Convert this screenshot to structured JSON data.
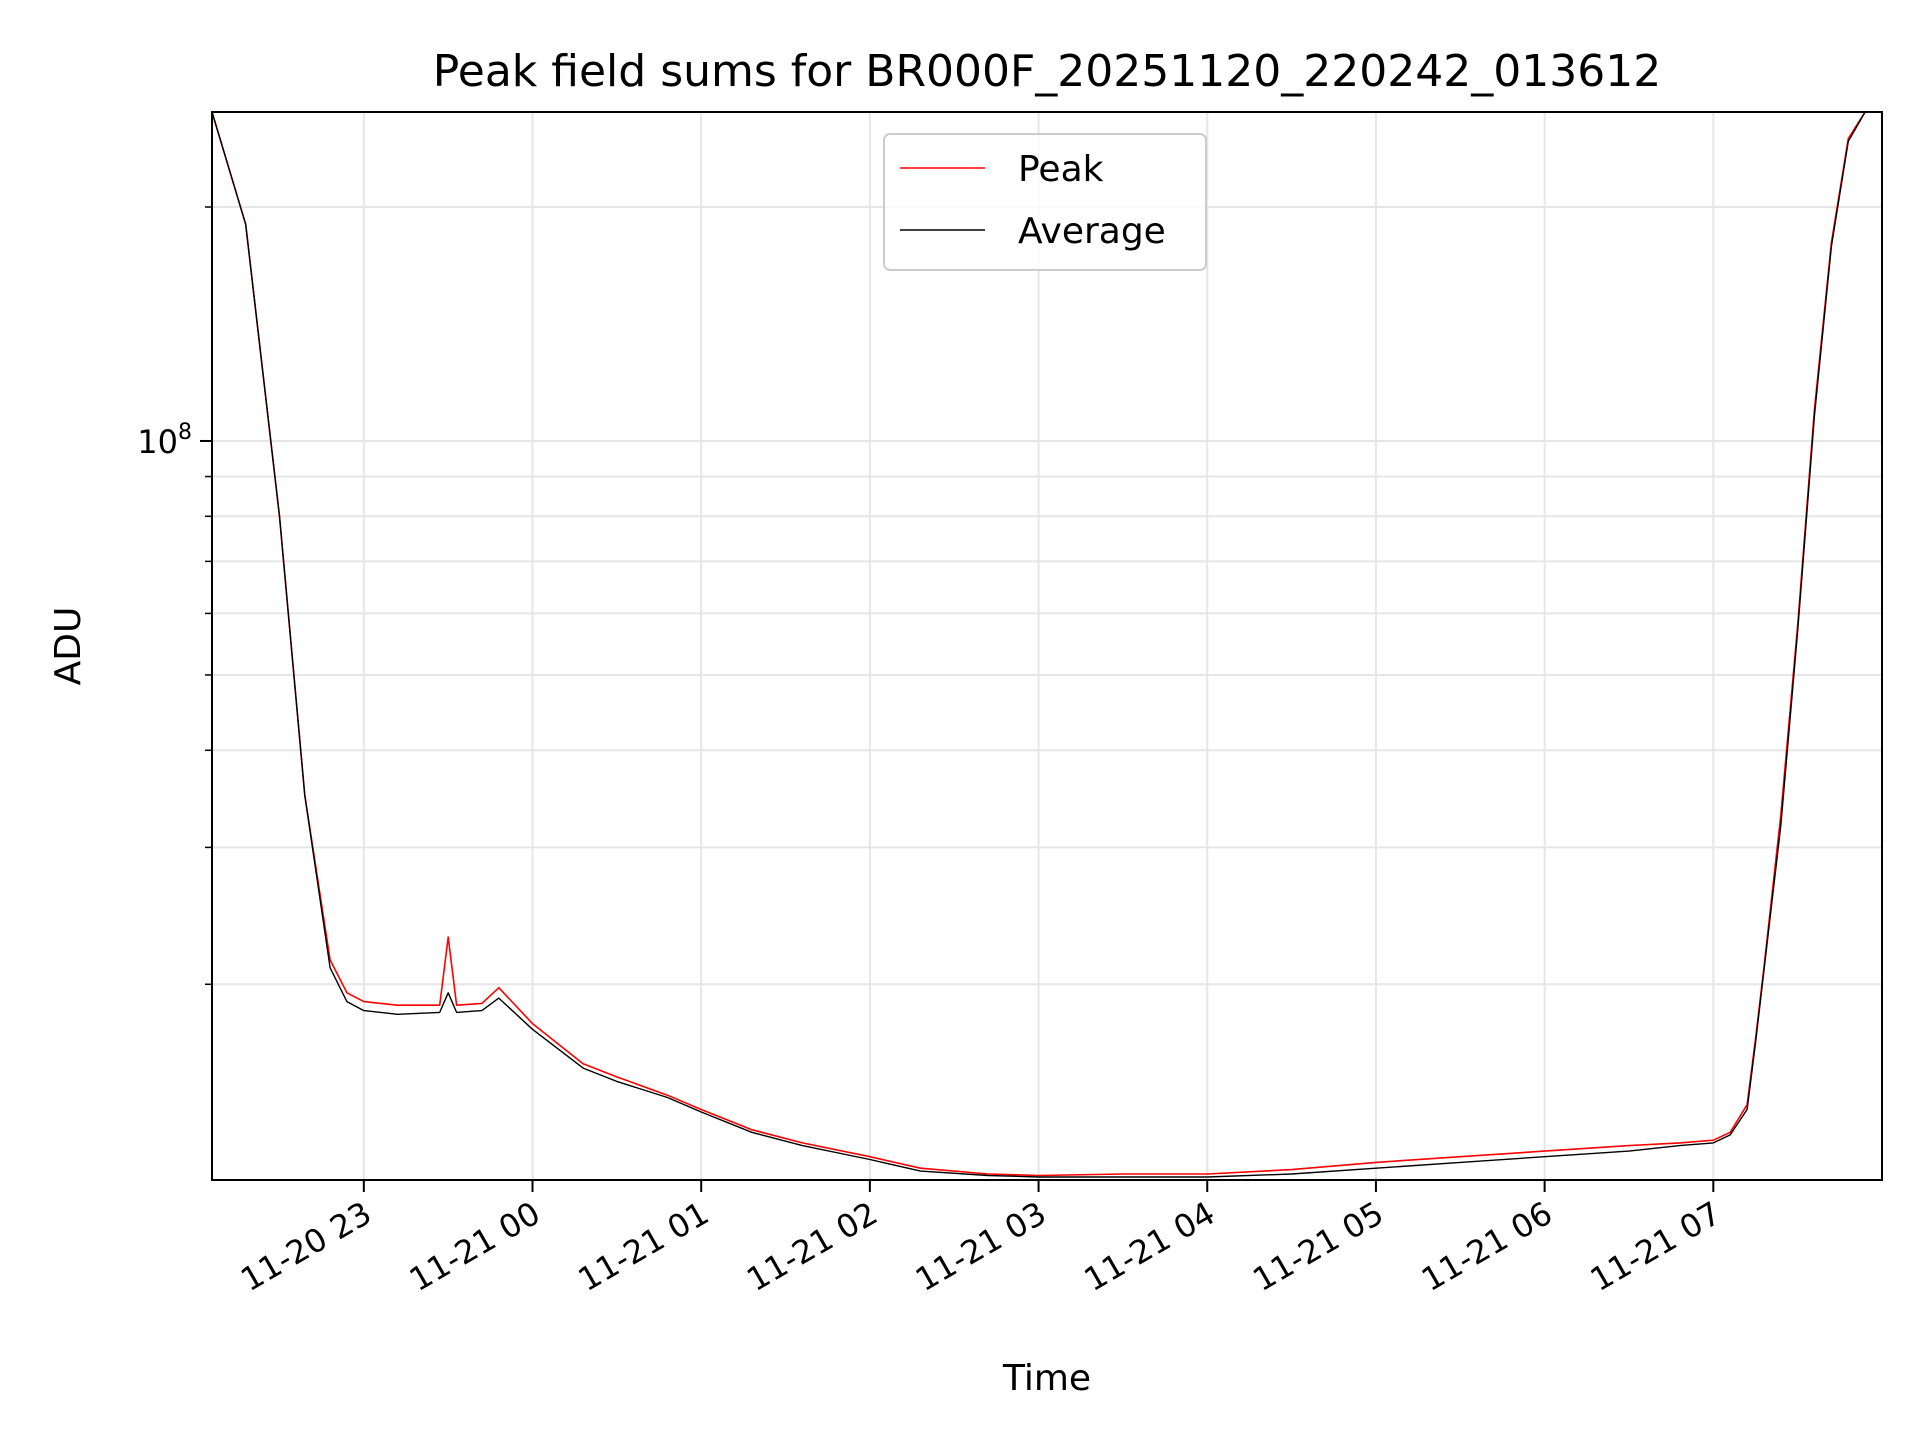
{
  "chart_data": {
    "type": "line",
    "title": "Peak field sums for BR000F_20251120_220242_013612",
    "xlabel": "Time",
    "ylabel": "ADU",
    "yscale": "log",
    "grid": true,
    "legend_position": "top-center",
    "x_unit": "hours after 11-20 22:00",
    "xlim": [
      0.1,
      10.0
    ],
    "ylim": [
      11200000,
      265000000
    ],
    "x_ticks": [
      {
        "value": 1,
        "label": "11-20 23"
      },
      {
        "value": 2,
        "label": "11-21 00"
      },
      {
        "value": 3,
        "label": "11-21 01"
      },
      {
        "value": 4,
        "label": "11-21 02"
      },
      {
        "value": 5,
        "label": "11-21 03"
      },
      {
        "value": 6,
        "label": "11-21 04"
      },
      {
        "value": 7,
        "label": "11-21 05"
      },
      {
        "value": 8,
        "label": "11-21 06"
      },
      {
        "value": 9,
        "label": "11-21 07"
      }
    ],
    "y_ticks": [
      {
        "value": 100000000,
        "base": "10",
        "exponent": "8"
      }
    ],
    "y_minor_ticks": [
      20000000,
      30000000,
      40000000,
      50000000,
      60000000,
      70000000,
      80000000,
      90000000,
      200000000
    ],
    "series": [
      {
        "name": "Peak",
        "color": "#ff0000",
        "x": [
          0.1,
          0.3,
          0.5,
          0.65,
          0.8,
          0.9,
          1.0,
          1.2,
          1.45,
          1.5,
          1.55,
          1.7,
          1.8,
          2.0,
          2.3,
          2.5,
          2.8,
          3.0,
          3.3,
          3.6,
          4.0,
          4.3,
          4.7,
          5.0,
          5.5,
          6.0,
          6.5,
          7.0,
          7.5,
          8.0,
          8.5,
          8.8,
          9.0,
          9.1,
          9.2,
          9.25,
          9.3,
          9.4,
          9.5,
          9.6,
          9.7,
          9.8,
          9.9,
          10.0
        ],
        "y": [
          265000000,
          190000000,
          80000000,
          35000000,
          21500000,
          19500000,
          19000000,
          18800000,
          18800000,
          23000000,
          18800000,
          18900000,
          19800000,
          17800000,
          15800000,
          15200000,
          14400000,
          13800000,
          13000000,
          12500000,
          12000000,
          11600000,
          11400000,
          11350000,
          11400000,
          11400000,
          11550000,
          11800000,
          12000000,
          12200000,
          12400000,
          12500000,
          12600000,
          12900000,
          14000000,
          17000000,
          21000000,
          33000000,
          58000000,
          110000000,
          180000000,
          245000000,
          265000000,
          265000000
        ]
      },
      {
        "name": "Average",
        "color": "#000000",
        "x": [
          0.1,
          0.3,
          0.5,
          0.65,
          0.8,
          0.9,
          1.0,
          1.2,
          1.45,
          1.5,
          1.55,
          1.7,
          1.8,
          2.0,
          2.3,
          2.5,
          2.8,
          3.0,
          3.3,
          3.6,
          4.0,
          4.3,
          4.7,
          5.0,
          5.5,
          6.0,
          6.5,
          7.0,
          7.5,
          8.0,
          8.5,
          8.8,
          9.0,
          9.1,
          9.2,
          9.25,
          9.3,
          9.4,
          9.5,
          9.6,
          9.7,
          9.8,
          9.9,
          10.0
        ],
        "y": [
          265000000,
          190000000,
          80000000,
          35000000,
          21000000,
          19000000,
          18500000,
          18300000,
          18400000,
          19500000,
          18400000,
          18500000,
          19200000,
          17500000,
          15600000,
          15000000,
          14300000,
          13700000,
          12900000,
          12400000,
          11900000,
          11500000,
          11350000,
          11300000,
          11300000,
          11300000,
          11400000,
          11600000,
          11800000,
          12000000,
          12200000,
          12400000,
          12500000,
          12800000,
          13800000,
          16800000,
          20800000,
          32000000,
          57000000,
          108000000,
          178000000,
          243000000,
          265000000,
          265000000
        ]
      }
    ]
  }
}
